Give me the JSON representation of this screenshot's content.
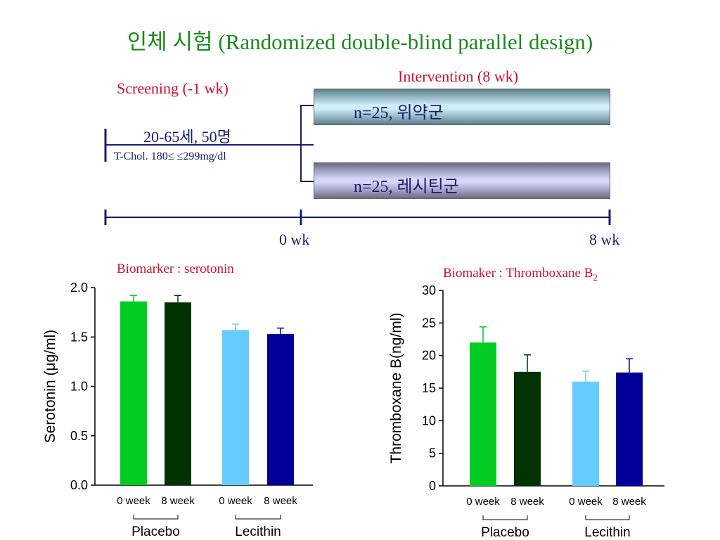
{
  "title": "인체 시험 (Randomized double-blind parallel design)",
  "design": {
    "screening_label": "Screening (-1 wk)",
    "intervention_label": "Intervention (8 wk)",
    "subjects_label": "20-65세, 50명",
    "criteria_label": "T-Chol. 180≤ ≤299mg/dl",
    "group1_label": "n=25, 위약군",
    "group2_label": "n=25, 레시틴군",
    "timeline_start": "0 wk",
    "timeline_end": "8 wk"
  },
  "chart_data": [
    {
      "type": "bar",
      "title": "Biomarker : serotonin",
      "ylabel": "Serotonin (μg/ml)",
      "ylim": [
        0,
        2.0
      ],
      "yticks": [
        "0.0",
        "0.5",
        "1.0",
        "1.5",
        "2.0"
      ],
      "categories": [
        "0 week",
        "8 week",
        "0 week",
        "8 week"
      ],
      "groups": [
        "Placebo",
        "Lecithin"
      ],
      "values": [
        1.86,
        1.85,
        1.57,
        1.53
      ],
      "errors": [
        0.06,
        0.07,
        0.06,
        0.06
      ],
      "colors": [
        "#00cc22",
        "#003300",
        "#66ccff",
        "#000099"
      ]
    },
    {
      "type": "bar",
      "title": "Biomaker : Thromboxane B",
      "title_sub": "2",
      "ylabel": "Thromboxane B(ng/ml)",
      "ylim": [
        0,
        30
      ],
      "yticks": [
        "0",
        "5",
        "10",
        "15",
        "20",
        "25",
        "30"
      ],
      "categories": [
        "0 week",
        "8 week",
        "0 week",
        "8 week"
      ],
      "groups": [
        "Placebo",
        "Lecithin"
      ],
      "values": [
        22.0,
        17.5,
        16.0,
        17.4
      ],
      "errors": [
        2.4,
        2.6,
        1.6,
        2.1
      ],
      "colors": [
        "#00cc22",
        "#003300",
        "#66ccff",
        "#000099"
      ]
    }
  ]
}
